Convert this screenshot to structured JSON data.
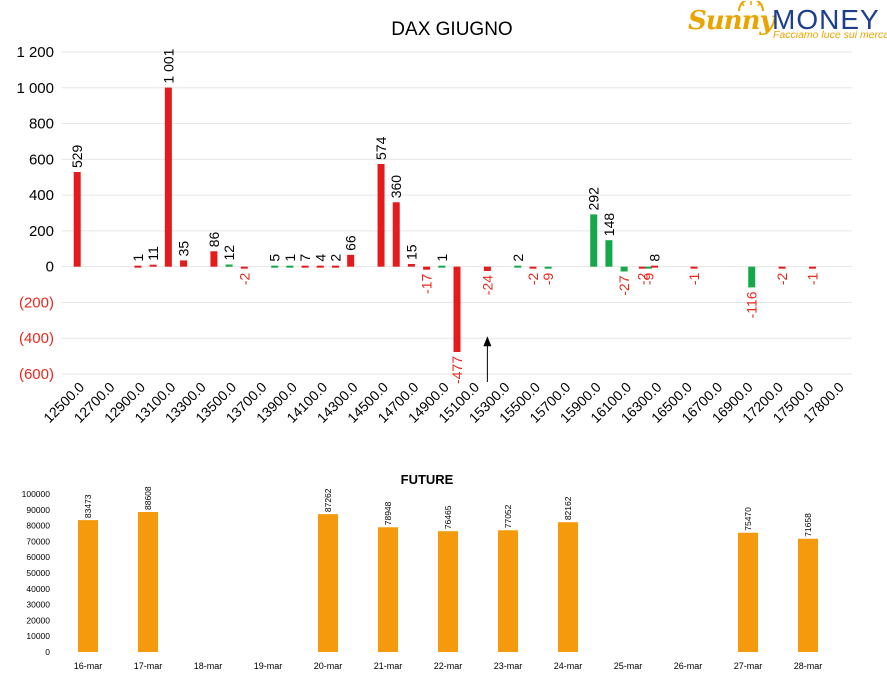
{
  "logo": {
    "brand_left": "Sunny",
    "brand_right": "MONEY",
    "tagline": "Facciamo luce sui mercati"
  },
  "colors": {
    "negative_red": "#e41a1c",
    "positive_green": "#14a84a",
    "neutral_red": "#e8281e",
    "future_orange": "#f59a0c"
  },
  "chart_data": [
    {
      "type": "bar",
      "title": "DAX GIUGNO",
      "categories": [
        "12500.0",
        "12700.0",
        "12900.0",
        "13100.0",
        "13300.0",
        "13500.0",
        "13700.0",
        "13900.0",
        "14100.0",
        "14300.0",
        "14500.0",
        "14700.0",
        "14900.0",
        "15100.0",
        "15300.0",
        "15500.0",
        "15700.0",
        "15900.0",
        "16100.0",
        "16300.0",
        "16500.0",
        "16700.0",
        "16900.0",
        "17200.0",
        "17500.0",
        "17800.0"
      ],
      "ylim": [
        -600,
        1200
      ],
      "yticks": [
        "1 200",
        "1 000",
        "800",
        "600",
        "400",
        "200",
        "0",
        "(200)",
        "(400)",
        "(600)"
      ],
      "ytick_values": [
        1200,
        1000,
        800,
        600,
        400,
        200,
        0,
        -200,
        -400,
        -600
      ],
      "grid": true,
      "bars": [
        {
          "x": 0.0,
          "value": 529,
          "label": "529",
          "color": "red"
        },
        {
          "x": 2.0,
          "value": 1,
          "label": "1",
          "color": "red"
        },
        {
          "x": 2.5,
          "value": 11,
          "label": "11",
          "color": "red"
        },
        {
          "x": 3.0,
          "value": 1001,
          "label": "1 001",
          "color": "red"
        },
        {
          "x": 3.5,
          "value": 35,
          "label": "35",
          "color": "red"
        },
        {
          "x": 4.5,
          "value": 86,
          "label": "86",
          "color": "red"
        },
        {
          "x": 5.0,
          "value": 12,
          "label": "12",
          "color": "green"
        },
        {
          "x": 5.5,
          "value": -2,
          "label": "-2",
          "color": "red"
        },
        {
          "x": 6.5,
          "value": 5,
          "label": "5",
          "color": "green"
        },
        {
          "x": 7.0,
          "value": 1,
          "label": "1",
          "color": "green"
        },
        {
          "x": 7.5,
          "value": 7,
          "label": "7",
          "color": "red"
        },
        {
          "x": 8.0,
          "value": 4,
          "label": "4",
          "color": "red"
        },
        {
          "x": 8.5,
          "value": 2,
          "label": "2",
          "color": "red"
        },
        {
          "x": 9.0,
          "value": 66,
          "label": "66",
          "color": "red"
        },
        {
          "x": 10.0,
          "value": 574,
          "label": "574",
          "color": "red"
        },
        {
          "x": 10.5,
          "value": 360,
          "label": "360",
          "color": "red"
        },
        {
          "x": 11.0,
          "value": 15,
          "label": "15",
          "color": "red"
        },
        {
          "x": 11.5,
          "value": -17,
          "label": "-17",
          "color": "red"
        },
        {
          "x": 12.0,
          "value": 1,
          "label": "1",
          "color": "green"
        },
        {
          "x": 12.5,
          "value": -477,
          "label": "-477",
          "color": "red"
        },
        {
          "x": 13.5,
          "value": -24,
          "label": "-24",
          "color": "red"
        },
        {
          "x": 14.5,
          "value": 2,
          "label": "2",
          "color": "green"
        },
        {
          "x": 15.0,
          "value": -2,
          "label": "-2",
          "color": "red"
        },
        {
          "x": 15.5,
          "value": -9,
          "label": "-9",
          "color": "green"
        },
        {
          "x": 17.0,
          "value": 292,
          "label": "292",
          "color": "green"
        },
        {
          "x": 17.5,
          "value": 148,
          "label": "148",
          "color": "green"
        },
        {
          "x": 18.0,
          "value": -27,
          "label": "-27",
          "color": "green"
        },
        {
          "x": 18.6,
          "value": -2,
          "label": "-2",
          "color": "red"
        },
        {
          "x": 18.8,
          "value": -9,
          "label": "-9",
          "color": "green"
        },
        {
          "x": 19.0,
          "value": 8,
          "label": "8",
          "color": "red"
        },
        {
          "x": 20.3,
          "value": -1,
          "label": "-1",
          "color": "red"
        },
        {
          "x": 22.2,
          "value": -116,
          "label": "-116",
          "color": "green"
        },
        {
          "x": 23.2,
          "value": -2,
          "label": "-2",
          "color": "red"
        },
        {
          "x": 24.2,
          "value": -1,
          "label": "-1",
          "color": "red"
        }
      ],
      "annotation": {
        "type": "arrow",
        "x": 13.5,
        "from_value": -640,
        "to_value": -400
      }
    },
    {
      "type": "bar",
      "title": "FUTURE",
      "categories": [
        "16-mar",
        "17-mar",
        "18-mar",
        "19-mar",
        "20-mar",
        "21-mar",
        "22-mar",
        "23-mar",
        "24-mar",
        "25-mar",
        "26-mar",
        "27-mar",
        "28-mar"
      ],
      "values": [
        83473,
        88608,
        null,
        null,
        87262,
        78948,
        76465,
        77052,
        82162,
        null,
        null,
        75470,
        71658
      ],
      "data_labels": [
        "83473",
        "88608",
        "",
        "",
        "87262",
        "78948",
        "76465",
        "77052",
        "82162",
        "",
        "",
        "75470",
        "71658"
      ],
      "ylim": [
        0,
        100000
      ],
      "yticks": [
        "100000",
        "90000",
        "80000",
        "70000",
        "60000",
        "50000",
        "40000",
        "30000",
        "20000",
        "10000",
        "0"
      ],
      "ytick_values": [
        100000,
        90000,
        80000,
        70000,
        60000,
        50000,
        40000,
        30000,
        20000,
        10000,
        0
      ],
      "grid": false
    }
  ]
}
